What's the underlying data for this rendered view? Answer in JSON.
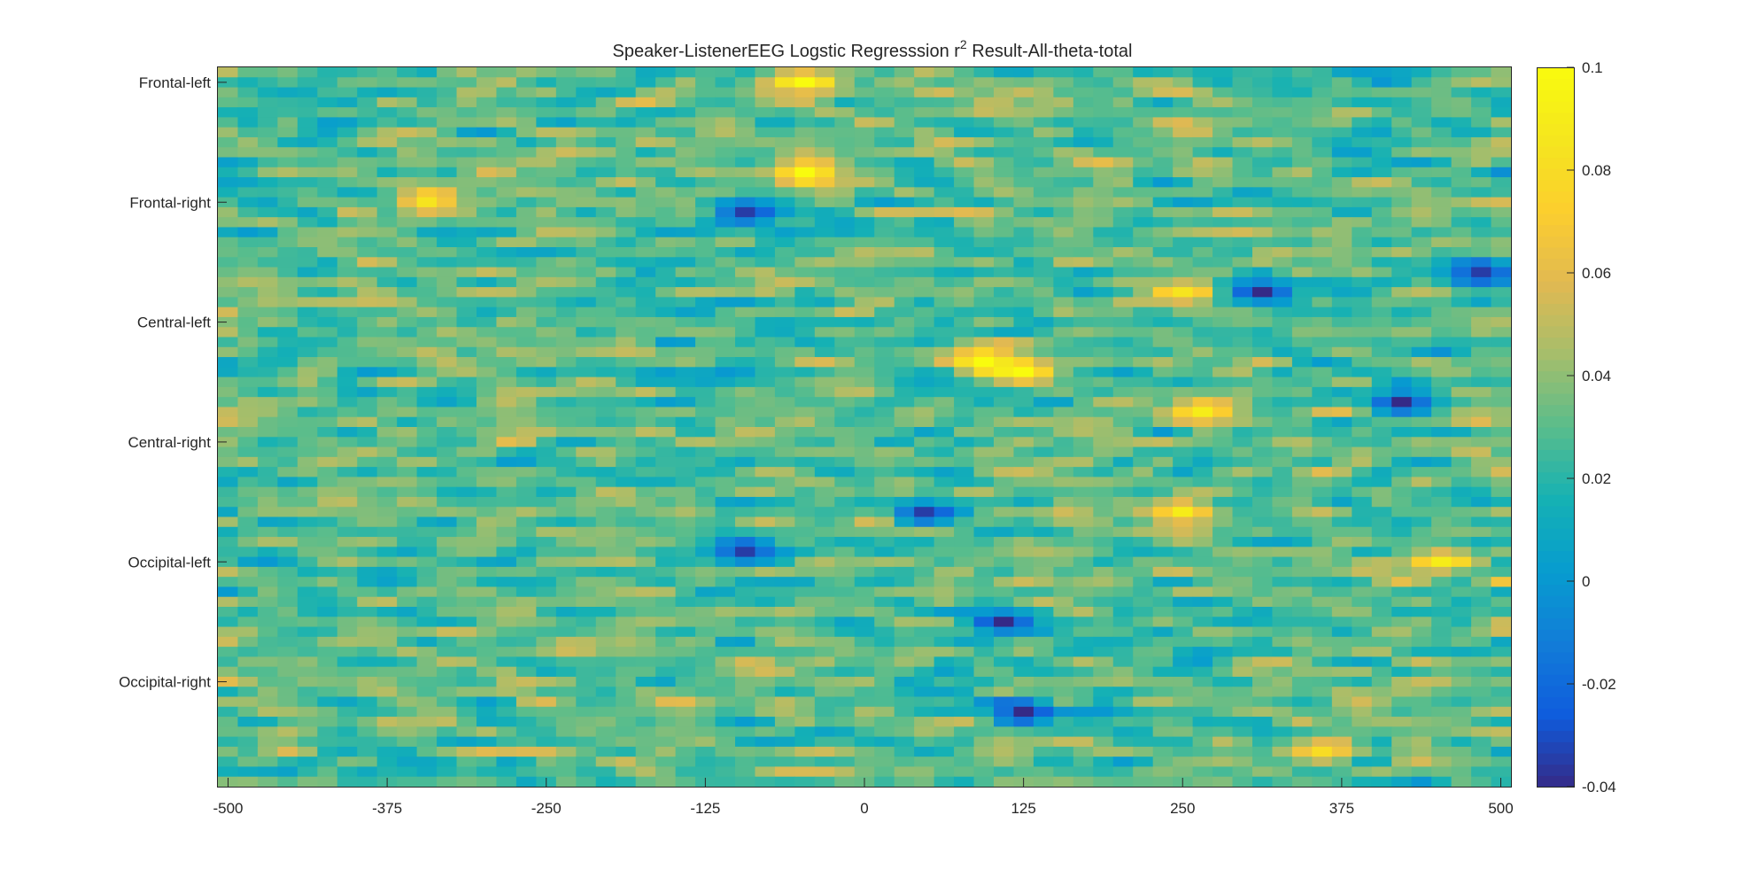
{
  "chart_data": {
    "type": "heatmap",
    "title_main": "Speaker-ListenerEEG Logstic Regresssion r",
    "title_sup": "2",
    "title_rest": " Result-All-theta-total",
    "x_tick_labels": [
      "-500",
      "-375",
      "-250",
      "-125",
      "0",
      "125",
      "250",
      "375",
      "500"
    ],
    "x_tick_values": [
      -500,
      -375,
      -250,
      -125,
      0,
      125,
      250,
      375,
      500
    ],
    "xlim": [
      -508,
      508
    ],
    "y_tick_labels": [
      "Frontal-left",
      "Frontal-right",
      "Central-left",
      "Central-right",
      "Occipital-left",
      "Occipital-right"
    ],
    "y_tick_rows": [
      1,
      13,
      25,
      37,
      49,
      61
    ],
    "n_rows": 72,
    "n_cols": 65,
    "clim": [
      -0.04,
      0.1
    ],
    "colorbar_ticks": [
      "0.1",
      "0.08",
      "0.06",
      "0.04",
      "0.02",
      "0",
      "-0.02",
      "-0.04"
    ],
    "colorbar_tick_values": [
      0.1,
      0.08,
      0.06,
      0.04,
      0.02,
      0,
      -0.02,
      -0.04
    ],
    "colormap": "parula",
    "hotspots": [
      {
        "row": 1,
        "col": 29,
        "value": 0.1
      },
      {
        "row": 10,
        "col": 29,
        "value": 0.1
      },
      {
        "row": 29,
        "col": 38,
        "value": 0.1
      },
      {
        "row": 30,
        "col": 40,
        "value": 0.1
      },
      {
        "row": 34,
        "col": 49,
        "value": 0.09
      },
      {
        "row": 44,
        "col": 48,
        "value": 0.09
      },
      {
        "row": 49,
        "col": 61,
        "value": 0.09
      },
      {
        "row": 13,
        "col": 10,
        "value": 0.085
      },
      {
        "row": 68,
        "col": 55,
        "value": 0.08
      },
      {
        "row": 22,
        "col": 48,
        "value": 0.085
      }
    ],
    "coldspots": [
      {
        "row": 22,
        "col": 52,
        "value": -0.04
      },
      {
        "row": 33,
        "col": 59,
        "value": -0.04
      },
      {
        "row": 44,
        "col": 35,
        "value": -0.035
      },
      {
        "row": 55,
        "col": 39,
        "value": -0.04
      },
      {
        "row": 64,
        "col": 40,
        "value": -0.04
      },
      {
        "row": 14,
        "col": 26,
        "value": -0.035
      },
      {
        "row": 48,
        "col": 26,
        "value": -0.035
      },
      {
        "row": 20,
        "col": 63,
        "value": -0.035
      }
    ]
  }
}
